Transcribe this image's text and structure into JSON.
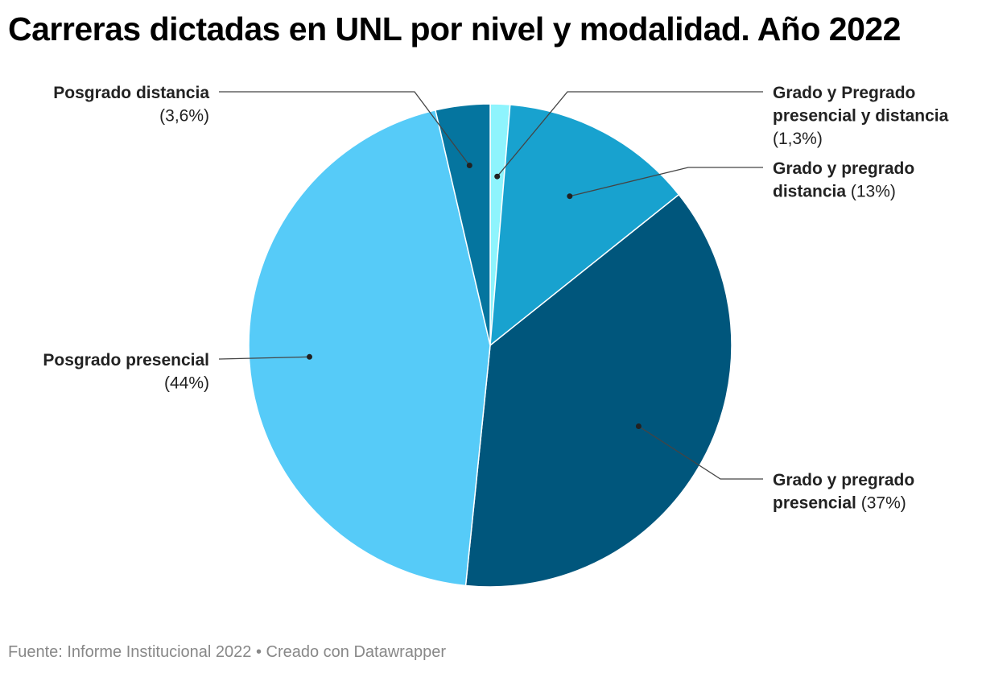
{
  "title": "Carreras dictadas en UNL por nivel y modalidad. Año 2022",
  "footer": {
    "source": "Fuente: Informe Institucional 2022",
    "separator": " • ",
    "credit": "Creado con Datawrapper"
  },
  "chart_data": {
    "type": "pie",
    "title": "Carreras dictadas en UNL por nivel y modalidad. Año 2022",
    "slices": [
      {
        "lines": [
          "Grado y Pregrado",
          "presencial y distancia"
        ],
        "pct_label": "(1,3%)",
        "value": 1.3,
        "color": "#8ef4fd"
      },
      {
        "lines": [
          "Grado y pregrado",
          "distancia"
        ],
        "pct_label": "(13%)",
        "value": 12.8,
        "color": "#18a2cf"
      },
      {
        "lines": [
          "Grado y pregrado",
          "presencial"
        ],
        "pct_label": "(37%)",
        "value": 36.9,
        "color": "#00567c"
      },
      {
        "lines": [
          "Posgrado presencial"
        ],
        "pct_label": "(44%)",
        "value": 44.2,
        "color": "#56cbf8"
      },
      {
        "lines": [
          "Posgrado distancia"
        ],
        "pct_label": "(3,6%)",
        "value": 3.6,
        "color": "#05759f"
      }
    ]
  }
}
